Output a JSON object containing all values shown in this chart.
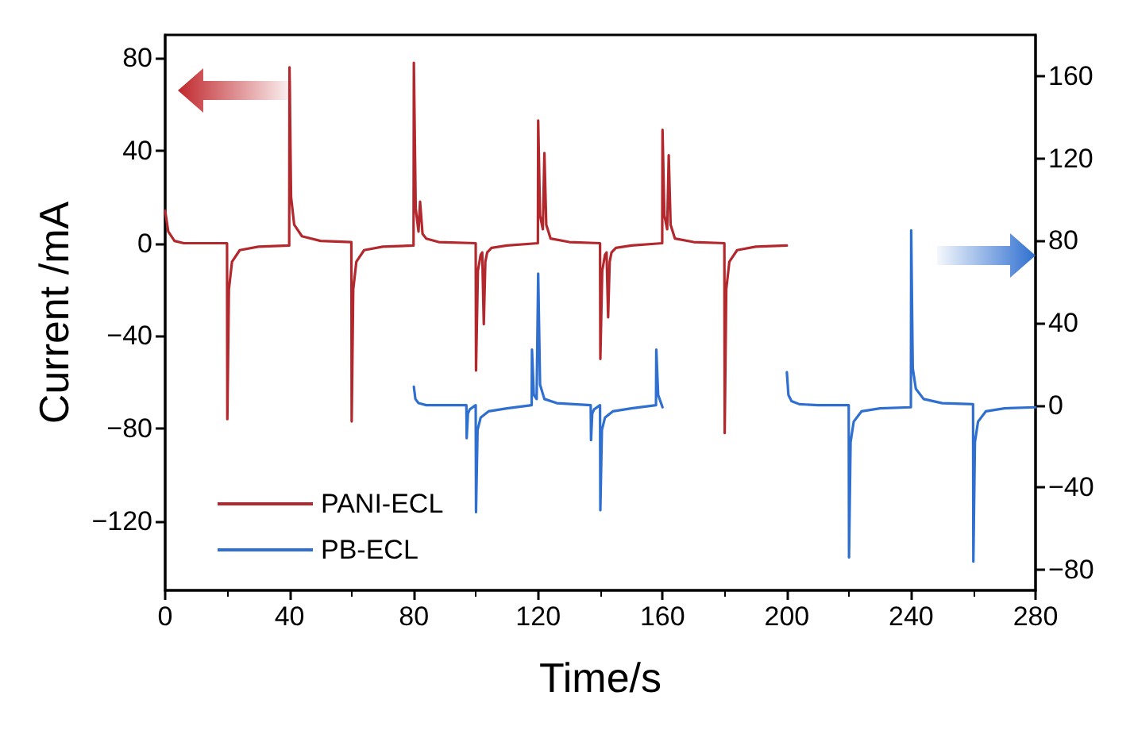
{
  "chart_data": {
    "type": "line",
    "xlabel": "Time/s",
    "ylabel": "Current /mA",
    "xlim": [
      0,
      280
    ],
    "xticks": [
      0,
      40,
      80,
      120,
      160,
      200,
      240,
      280
    ],
    "ylim": [
      -150,
      90
    ],
    "yticks": [
      -120,
      -80,
      -40,
      0,
      40,
      80
    ],
    "y2lim": [
      -90,
      180
    ],
    "y2ticks": [
      -80,
      -40,
      0,
      40,
      80,
      120,
      160
    ],
    "legend": "bottom left",
    "grid": false,
    "marker": "none",
    "line_style": "solid",
    "series": [
      {
        "name": "PANI-ECL",
        "color": "#b3282d",
        "x": [
          0,
          1,
          3,
          6,
          19.9,
          20,
          20.5,
          21.5,
          24,
          30,
          39.9,
          40,
          40.5,
          41.5,
          44,
          50,
          59.9,
          60,
          60.5,
          61.5,
          64,
          70,
          79.9,
          80,
          80.6,
          81.5,
          82,
          82.8,
          84,
          88,
          99.9,
          100,
          100.6,
          101.5,
          102,
          102.5,
          103,
          103.6,
          105,
          110,
          119.9,
          120,
          120.6,
          121.5,
          122,
          122.6,
          124,
          130,
          139.9,
          140,
          140.6,
          141.5,
          142,
          142.5,
          143,
          143.6,
          145,
          150,
          159.9,
          160,
          160.6,
          161.5,
          162,
          162.6,
          164,
          170,
          179.9,
          180,
          180.5,
          181.5,
          184,
          190,
          200
        ],
        "values": [
          14,
          5,
          1,
          0,
          0,
          -76,
          -20,
          -8,
          -3,
          -1.5,
          -1,
          76,
          20,
          8,
          3,
          1,
          0.5,
          -77,
          -20,
          -8,
          -3,
          -1.5,
          -1,
          78,
          15,
          5,
          18,
          4,
          2,
          0.5,
          0,
          -55,
          -12,
          -5,
          -4,
          -35,
          -8,
          -4,
          -2,
          -1,
          0,
          53,
          12,
          6,
          39,
          8,
          2,
          0.5,
          0,
          -50,
          -12,
          -5,
          -4,
          -32,
          -8,
          -4,
          -2,
          -1,
          0,
          49,
          12,
          6,
          38,
          8,
          2,
          0.5,
          0,
          -82,
          -20,
          -8,
          -3,
          -1.5,
          -1
        ]
      },
      {
        "name": "PB-ECL",
        "color": "#2f6fd0",
        "axis": "y2",
        "x": [
          80,
          80.5,
          81.5,
          84,
          90,
          96.9,
          97,
          97.4,
          98,
          99.9,
          100,
          100.5,
          101.5,
          104,
          110,
          117.9,
          118,
          118.6,
          119.5,
          120,
          120.6,
          122,
          126,
          136.9,
          137,
          137.4,
          138,
          139.9,
          140,
          140.5,
          141.5,
          144,
          150,
          157.9,
          158,
          158.6,
          160,
          180,
          200,
          200.5,
          201.5,
          204,
          210,
          219.9,
          220,
          220.5,
          221.5,
          224,
          230,
          239.9,
          240,
          240.5,
          241.5,
          244,
          250,
          259.9,
          260,
          260.5,
          261.5,
          264,
          270,
          280
        ],
        "values": [
          9,
          3,
          1,
          0,
          0,
          0,
          -16,
          -4,
          -2,
          0,
          -52,
          -12,
          -6,
          -3,
          -1.5,
          0,
          27,
          5,
          3,
          64,
          10,
          3,
          1,
          0,
          -17,
          -4,
          -2,
          0,
          -51,
          -12,
          -6,
          -3,
          -1.5,
          0,
          27,
          5,
          -1,
          null,
          16,
          5,
          2,
          0.5,
          0,
          0,
          -74,
          -18,
          -8,
          -3,
          -1.5,
          -1,
          85,
          18,
          8,
          3,
          1,
          0.5,
          -76,
          -18,
          -8,
          -3,
          -1.5,
          -1
        ]
      }
    ]
  }
}
